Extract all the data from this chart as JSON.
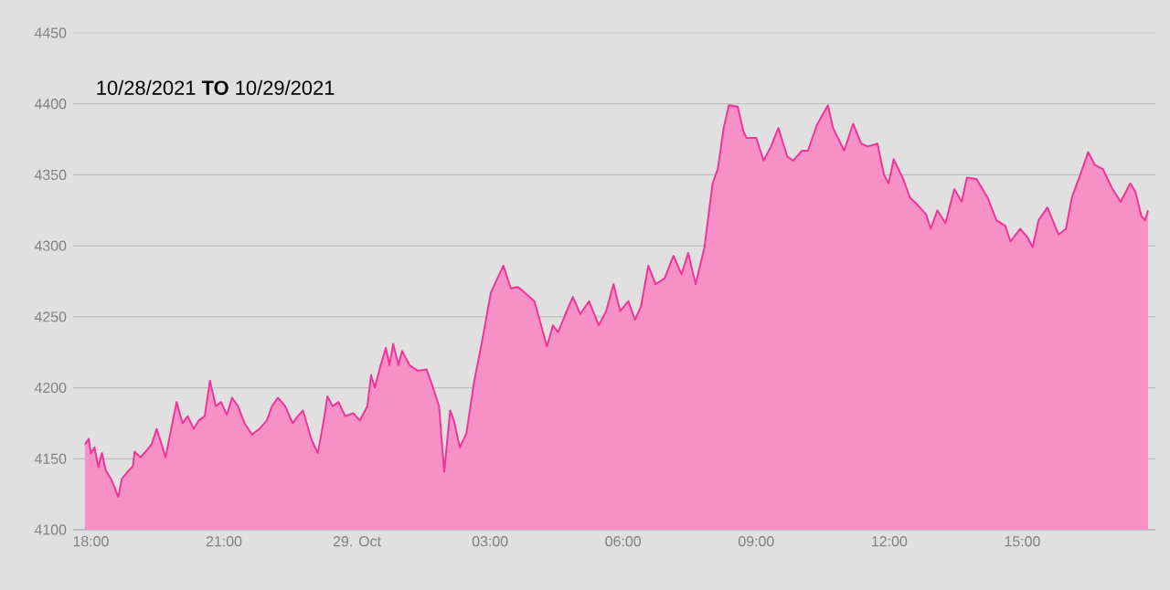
{
  "chart_data": {
    "type": "area",
    "title": "10/28/2021 **TO** 10/29/2021",
    "x": [
      "2021-10-28T17:52",
      "2021-10-28T17:57",
      "2021-10-28T18:00",
      "2021-10-28T18:05",
      "2021-10-28T18:10",
      "2021-10-28T18:15",
      "2021-10-28T18:20",
      "2021-10-28T18:27",
      "2021-10-28T18:32",
      "2021-10-28T18:37",
      "2021-10-28T18:42",
      "2021-10-28T18:50",
      "2021-10-28T18:57",
      "2021-10-28T18:59",
      "2021-10-28T19:07",
      "2021-10-28T19:14",
      "2021-10-28T19:22",
      "2021-10-28T19:29",
      "2021-10-28T19:37",
      "2021-10-28T19:41",
      "2021-10-28T19:49",
      "2021-10-28T19:56",
      "2021-10-28T20:04",
      "2021-10-28T20:11",
      "2021-10-28T20:19",
      "2021-10-28T20:26",
      "2021-10-28T20:34",
      "2021-10-28T20:41",
      "2021-10-28T20:49",
      "2021-10-28T20:56",
      "2021-10-28T21:04",
      "2021-10-28T21:11",
      "2021-10-28T21:19",
      "2021-10-28T21:28",
      "2021-10-28T21:38",
      "2021-10-28T21:48",
      "2021-10-28T21:58",
      "2021-10-28T22:05",
      "2021-10-28T22:13",
      "2021-10-28T22:23",
      "2021-10-28T22:33",
      "2021-10-28T22:40",
      "2021-10-28T22:47",
      "2021-10-28T22:58",
      "2021-10-28T23:07",
      "2021-10-28T23:15",
      "2021-10-28T23:20",
      "2021-10-28T23:27",
      "2021-10-28T23:35",
      "2021-10-28T23:44",
      "2021-10-28T23:55",
      "2021-10-29T00:04",
      "2021-10-29T00:14",
      "2021-10-29T00:19",
      "2021-10-29T00:24",
      "2021-10-29T00:32",
      "2021-10-29T00:39",
      "2021-10-29T00:44",
      "2021-10-29T00:49",
      "2021-10-29T00:56",
      "2021-10-29T01:01",
      "2021-10-29T01:11",
      "2021-10-29T01:22",
      "2021-10-29T01:34",
      "2021-10-29T01:41",
      "2021-10-29T01:51",
      "2021-10-29T01:56",
      "2021-10-29T01:58",
      "2021-10-29T02:06",
      "2021-10-29T02:11",
      "2021-10-29T02:19",
      "2021-10-29T02:28",
      "2021-10-29T02:38",
      "2021-10-29T02:50",
      "2021-10-29T03:01",
      "2021-10-29T03:18",
      "2021-10-29T03:28",
      "2021-10-29T03:38",
      "2021-10-29T03:47",
      "2021-10-29T04:00",
      "2021-10-29T04:07",
      "2021-10-29T04:17",
      "2021-10-29T04:25",
      "2021-10-29T04:32",
      "2021-10-29T04:42",
      "2021-10-29T04:52",
      "2021-10-29T05:02",
      "2021-10-29T05:14",
      "2021-10-29T05:27",
      "2021-10-29T05:37",
      "2021-10-29T05:47",
      "2021-10-29T05:56",
      "2021-10-29T06:07",
      "2021-10-29T06:16",
      "2021-10-29T06:24",
      "2021-10-29T06:34",
      "2021-10-29T06:44",
      "2021-10-29T06:56",
      "2021-10-29T07:08",
      "2021-10-29T07:19",
      "2021-10-29T07:28",
      "2021-10-29T07:38",
      "2021-10-29T07:50",
      "2021-10-29T08:01",
      "2021-10-29T08:08",
      "2021-10-29T08:16",
      "2021-10-29T08:23",
      "2021-10-29T08:35",
      "2021-10-29T08:43",
      "2021-10-29T08:47",
      "2021-10-29T09:00",
      "2021-10-29T09:10",
      "2021-10-29T09:20",
      "2021-10-29T09:30",
      "2021-10-29T09:42",
      "2021-10-29T09:50",
      "2021-10-29T10:02",
      "2021-10-29T10:10",
      "2021-10-29T10:22",
      "2021-10-29T10:37",
      "2021-10-29T10:44",
      "2021-10-29T10:59",
      "2021-10-29T11:11",
      "2021-10-29T11:22",
      "2021-10-29T11:31",
      "2021-10-29T11:44",
      "2021-10-29T11:53",
      "2021-10-29T11:59",
      "2021-10-29T12:06",
      "2021-10-29T12:19",
      "2021-10-29T12:28",
      "2021-10-29T12:38",
      "2021-10-29T12:50",
      "2021-10-29T12:56",
      "2021-10-29T13:05",
      "2021-10-29T13:16",
      "2021-10-29T13:28",
      "2021-10-29T13:38",
      "2021-10-29T13:45",
      "2021-10-29T13:58",
      "2021-10-29T14:13",
      "2021-10-29T14:25",
      "2021-10-29T14:37",
      "2021-10-29T14:44",
      "2021-10-29T14:57",
      "2021-10-29T15:07",
      "2021-10-29T15:14",
      "2021-10-29T15:22",
      "2021-10-29T15:34",
      "2021-10-29T15:49",
      "2021-10-29T15:59",
      "2021-10-29T16:07",
      "2021-10-29T16:19",
      "2021-10-29T16:29",
      "2021-10-29T16:38",
      "2021-10-29T16:49",
      "2021-10-29T17:01",
      "2021-10-29T17:13",
      "2021-10-29T17:26",
      "2021-10-29T17:33",
      "2021-10-29T17:41",
      "2021-10-29T17:46",
      "2021-10-29T17:50"
    ],
    "series": [
      {
        "color": "#f0359a",
        "values": [
          4160,
          4164,
          4154,
          4158,
          4144,
          4154,
          4142,
          4136,
          4130,
          4123,
          4136,
          4141,
          4145,
          4155,
          4151,
          4155,
          4160,
          4171,
          4158,
          4151,
          4172,
          4190,
          4175,
          4180,
          4171,
          4177,
          4180,
          4205,
          4187,
          4190,
          4181,
          4193,
          4187,
          4175,
          4167,
          4171,
          4177,
          4187,
          4193,
          4187,
          4175,
          4180,
          4184,
          4164,
          4154,
          4177,
          4194,
          4187,
          4190,
          4180,
          4182,
          4177,
          4187,
          4209,
          4200,
          4216,
          4228,
          4216,
          4231,
          4216,
          4226,
          4216,
          4212,
          4213,
          4203,
          4187,
          4154,
          4141,
          4184,
          4177,
          4158,
          4168,
          4203,
          4235,
          4267,
          4286,
          4270,
          4271,
          4267,
          4261,
          4248,
          4229,
          4244,
          4239,
          4252,
          4264,
          4252,
          4261,
          4244,
          4254,
          4273,
          4254,
          4261,
          4248,
          4257,
          4286,
          4273,
          4277,
          4293,
          4280,
          4295,
          4273,
          4299,
          4344,
          4354,
          4383,
          4399,
          4398,
          4380,
          4376,
          4376,
          4360,
          4370,
          4383,
          4363,
          4360,
          4367,
          4367,
          4385,
          4399,
          4383,
          4367,
          4386,
          4372,
          4370,
          4372,
          4350,
          4344,
          4361,
          4347,
          4334,
          4329,
          4322,
          4312,
          4325,
          4316,
          4340,
          4331,
          4348,
          4347,
          4334,
          4318,
          4314,
          4303,
          4312,
          4306,
          4299,
          4318,
          4327,
          4308,
          4312,
          4334,
          4351,
          4366,
          4357,
          4354,
          4341,
          4331,
          4344,
          4338,
          4321,
          4318,
          4325
        ]
      }
    ],
    "xlim": [
      "2021-10-28T17:36",
      "2021-10-29T18:00"
    ],
    "xticks": [
      {
        "value": "2021-10-28T18:00",
        "label": "18:00"
      },
      {
        "value": "2021-10-28T21:00",
        "label": "21:00"
      },
      {
        "value": "2021-10-29T00:00",
        "label": "29. Oct"
      },
      {
        "value": "2021-10-29T03:00",
        "label": "03:00"
      },
      {
        "value": "2021-10-29T06:00",
        "label": "06:00"
      },
      {
        "value": "2021-10-29T09:00",
        "label": "09:00"
      },
      {
        "value": "2021-10-29T12:00",
        "label": "12:00"
      },
      {
        "value": "2021-10-29T15:00",
        "label": "15:00"
      }
    ],
    "ylim": [
      4100,
      4450
    ],
    "yticks": [
      4100,
      4150,
      4200,
      4250,
      4300,
      4350,
      4400,
      4450
    ],
    "grid": "y",
    "legend": false
  }
}
